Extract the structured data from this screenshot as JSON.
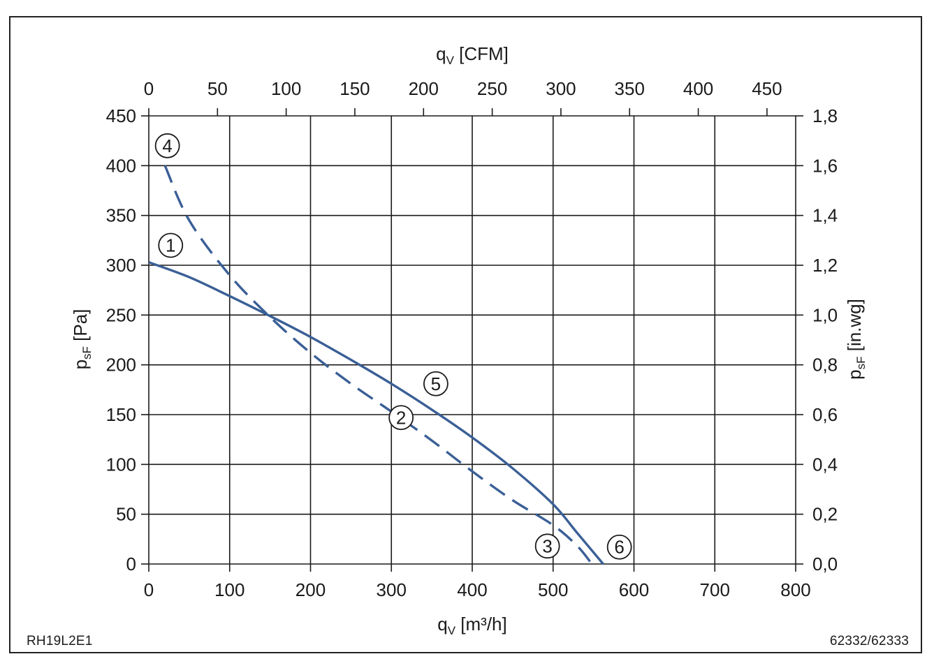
{
  "chart_data": {
    "type": "line",
    "x_bottom": {
      "label_base": "q",
      "label_sub": "V",
      "label_unit": " [m³/h]",
      "range": [
        0,
        800
      ],
      "ticks": [
        "0",
        "100",
        "200",
        "300",
        "400",
        "500",
        "600",
        "700",
        "800"
      ]
    },
    "x_top": {
      "label_base": "q",
      "label_sub": "V",
      "label_unit": " [CFM]",
      "range": [
        0,
        470.9
      ],
      "ticks": [
        "0",
        "50",
        "100",
        "150",
        "200",
        "250",
        "300",
        "350",
        "400",
        "450"
      ]
    },
    "y_left": {
      "label_base": "p",
      "label_sub": "sF",
      "label_unit": " [Pa]",
      "range": [
        0,
        450
      ],
      "ticks": [
        "0",
        "50",
        "100",
        "150",
        "200",
        "250",
        "300",
        "350",
        "400",
        "450"
      ]
    },
    "y_right": {
      "label_base": "p",
      "label_sub": "sF",
      "label_unit": " [in.wg]",
      "range": [
        0,
        1.8
      ],
      "ticks": [
        "0,0",
        "0,2",
        "0,4",
        "0,6",
        "0,8",
        "1,0",
        "1,2",
        "1,4",
        "1,6",
        "1,8"
      ]
    },
    "grid": true,
    "series": [
      {
        "style": "solid",
        "color": "#3a5f96",
        "x": [
          0,
          50,
          100,
          150,
          200,
          250,
          300,
          350,
          400,
          450,
          500,
          530,
          562
        ],
        "y": [
          303,
          288,
          269,
          249,
          228,
          205,
          181,
          155,
          127,
          96,
          60,
          31,
          0
        ]
      },
      {
        "style": "dashed",
        "color": "#3a5f96",
        "x": [
          20,
          50,
          100,
          150,
          200,
          250,
          300,
          350,
          400,
          450,
          500,
          530,
          548
        ],
        "y": [
          400,
          345,
          290,
          248,
          212,
          181,
          153,
          124,
          93,
          64,
          39,
          18,
          0
        ]
      }
    ],
    "annotations": [
      {
        "text": "1",
        "x": 27,
        "y": 320
      },
      {
        "text": "2",
        "x": 312,
        "y": 147
      },
      {
        "text": "3",
        "x": 493,
        "y": 18
      },
      {
        "text": "4",
        "x": 23,
        "y": 420
      },
      {
        "text": "5",
        "x": 355,
        "y": 181
      },
      {
        "text": "6",
        "x": 582,
        "y": 17
      }
    ],
    "line_color": "#3a5f96",
    "axis_color": "#1a1a1a"
  },
  "footer": {
    "left_code": "RH19L2E1",
    "right_code": "62332/62333"
  }
}
